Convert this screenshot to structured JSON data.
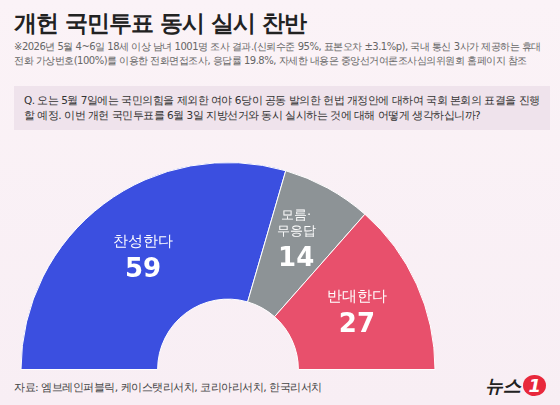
{
  "chart_data": {
    "type": "half_doughnut",
    "title": "개헌 국민투표 동시 실시 찬반",
    "notes": "※2026년 5월 4~6일 18세 이상 남녀 1001명 조사 결과.(신뢰수준 95%, 표본오차 ±3.1%p), 국내 통신 3사가 제공하는 휴대전화 가상번호(100%)를 이용한 전화면접조사, 응답률 19.8%, 자세한 내용은 중앙선거여론조사심의위원회 홈페이지 참조",
    "question": "Q. 오는 5월 7일에는 국민의힘을 제외한 여야 6당이 공동 발의한 헌법 개정안에 대하여 국회 본회의 표결을 진행할 예정. 이번 개헌 국민투표를 6월 3일 지방선거와 동시 실시하는 것에 대해 어떻게 생각하십니까?",
    "categories": [
      "찬성한다",
      "모름·무응답",
      "반대한다"
    ],
    "values": [
      59,
      14,
      27
    ],
    "colors": [
      "#3b4fe0",
      "#8d9396",
      "#e8506c"
    ],
    "data_labels": true,
    "source": "자료: 엠브레인퍼블릭, 케이스탯리서치, 코리아리서치, 한국리서치",
    "brand": [
      "뉴스",
      "1"
    ]
  }
}
